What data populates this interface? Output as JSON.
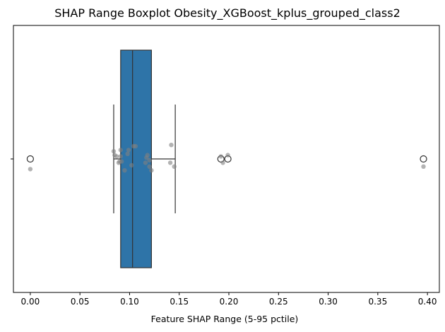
{
  "chart_data": {
    "type": "boxplot",
    "title": "SHAP Range Boxplot Obesity_XGBoost_kplus_grouped_class2",
    "xlabel": "Feature SHAP Range (5-95 pctile)",
    "ylabel": "",
    "xlim": [
      -0.017,
      0.412
    ],
    "xticks": [
      0.0,
      0.05,
      0.1,
      0.15,
      0.2,
      0.25,
      0.3,
      0.35,
      0.4
    ],
    "xtick_labels": [
      "0.00",
      "0.05",
      "0.10",
      "0.15",
      "0.20",
      "0.25",
      "0.30",
      "0.35",
      "0.40"
    ],
    "grid": false,
    "box": {
      "q1": 0.091,
      "median": 0.103,
      "q3": 0.122,
      "whisker_low": 0.084,
      "whisker_high": 0.146,
      "fill_color": "#2e74a8",
      "edge_color": "#333333"
    },
    "outliers": [
      0.0,
      0.192,
      0.199,
      0.396
    ],
    "points": [
      {
        "x": 0.0,
        "y": 0.08
      },
      {
        "x": 0.084,
        "y": -0.06
      },
      {
        "x": 0.085,
        "y": -0.03
      },
      {
        "x": 0.087,
        "y": -0.02
      },
      {
        "x": 0.089,
        "y": 0.03
      },
      {
        "x": 0.09,
        "y": 0.02
      },
      {
        "x": 0.091,
        "y": -0.07
      },
      {
        "x": 0.091,
        "y": -0.02
      },
      {
        "x": 0.092,
        "y": 0.02
      },
      {
        "x": 0.095,
        "y": 0.09
      },
      {
        "x": 0.098,
        "y": -0.04
      },
      {
        "x": 0.099,
        "y": -0.07
      },
      {
        "x": 0.102,
        "y": 0.05
      },
      {
        "x": 0.104,
        "y": -0.1
      },
      {
        "x": 0.106,
        "y": -0.1
      },
      {
        "x": 0.116,
        "y": 0.03
      },
      {
        "x": 0.117,
        "y": -0.01
      },
      {
        "x": 0.118,
        "y": -0.03
      },
      {
        "x": 0.12,
        "y": 0.06
      },
      {
        "x": 0.12,
        "y": 0.01
      },
      {
        "x": 0.122,
        "y": 0.09
      },
      {
        "x": 0.141,
        "y": 0.03
      },
      {
        "x": 0.142,
        "y": -0.11
      },
      {
        "x": 0.145,
        "y": 0.06
      },
      {
        "x": 0.192,
        "y": -0.02
      },
      {
        "x": 0.194,
        "y": 0.03
      },
      {
        "x": 0.199,
        "y": -0.03
      },
      {
        "x": 0.396,
        "y": 0.06
      }
    ],
    "point_color": "#808080",
    "outlier_edge_color": "#333333"
  }
}
